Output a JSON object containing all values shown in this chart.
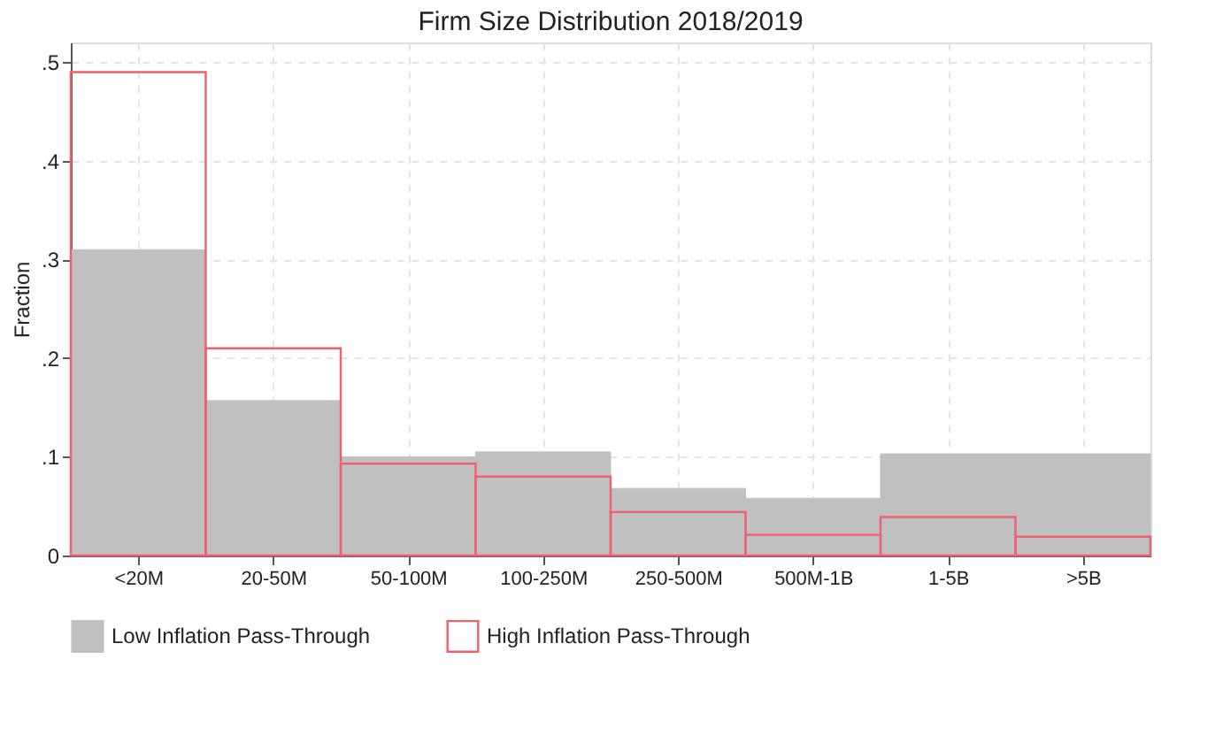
{
  "chart_data": {
    "type": "bar",
    "title": "Firm Size Distribution 2018/2019",
    "ylabel": "Fraction",
    "categories": [
      "<20M",
      "20-50M",
      "50-100M",
      "100-250M",
      "250-500M",
      "500M-1B",
      "1-5B",
      ">5B"
    ],
    "series": [
      {
        "name": "Low Inflation Pass-Through",
        "color": "#c0c0c0",
        "values": [
          0.31,
          0.157,
          0.1,
          0.105,
          0.068,
          0.058,
          0.103,
          0.103
        ]
      },
      {
        "name": "High Inflation Pass-Through",
        "color": "#f0606a",
        "values": [
          0.49,
          0.21,
          0.093,
          0.08,
          0.044,
          0.021,
          0.039,
          0.019
        ]
      }
    ],
    "ylim": [
      0,
      0.52
    ],
    "yticks": [
      {
        "value": 0,
        "label": "0"
      },
      {
        "value": 0.1,
        "label": ".1"
      },
      {
        "value": 0.2,
        "label": ".2"
      },
      {
        "value": 0.3,
        "label": ".3"
      },
      {
        "value": 0.4,
        "label": ".4"
      },
      {
        "value": 0.5,
        "label": ".5"
      }
    ],
    "grid": true,
    "legend": "bottom"
  }
}
